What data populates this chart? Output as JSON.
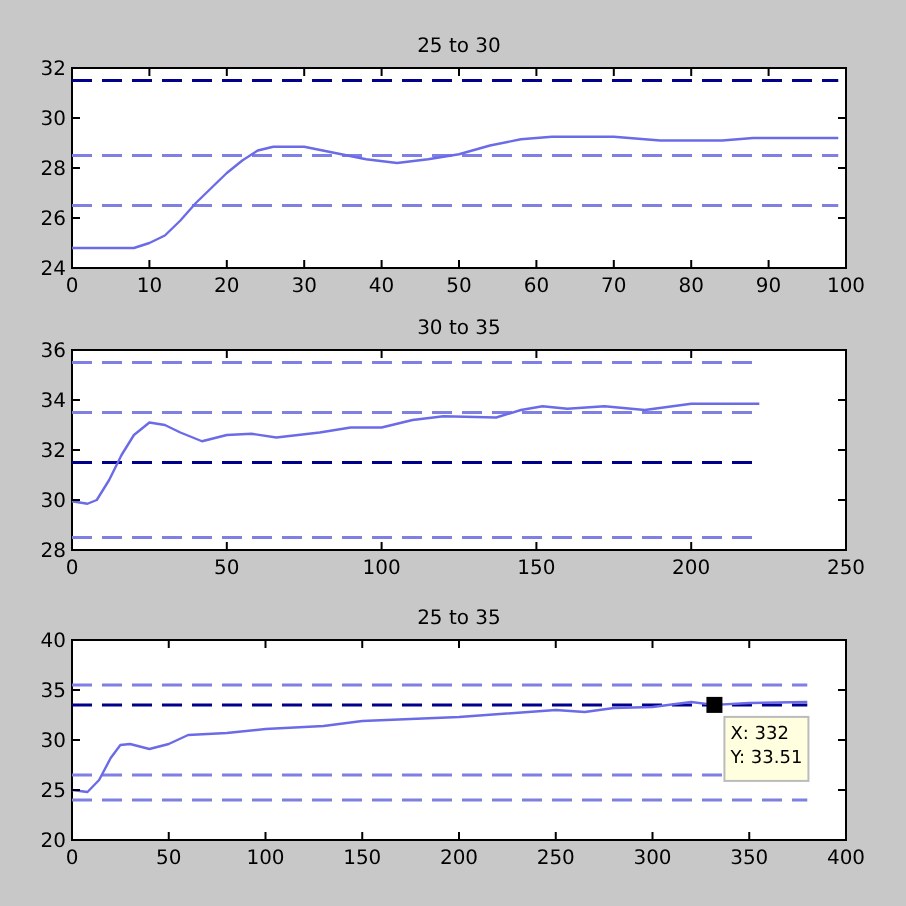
{
  "chart_data": [
    {
      "type": "line",
      "title": "25 to 30",
      "xlim": [
        0,
        100
      ],
      "xticks": [
        0,
        10,
        20,
        30,
        40,
        50,
        60,
        70,
        80,
        90,
        100
      ],
      "ylim": [
        24,
        32
      ],
      "yticks": [
        24,
        26,
        28,
        30,
        32
      ],
      "grid": false,
      "x": [
        0,
        8,
        10,
        12,
        14,
        16,
        18,
        20,
        22,
        24,
        26,
        30,
        34,
        38,
        42,
        46,
        50,
        54,
        58,
        62,
        70,
        76,
        84,
        88,
        99
      ],
      "series": [
        {
          "color": "#6b6be8",
          "values": [
            24.8,
            24.8,
            25,
            25.3,
            25.9,
            26.6,
            27.2,
            27.8,
            28.3,
            28.7,
            28.85,
            28.85,
            28.6,
            28.35,
            28.2,
            28.35,
            28.55,
            28.9,
            29.15,
            29.25,
            29.25,
            29.1,
            29.1,
            29.2,
            29.2
          ]
        }
      ],
      "ref_lines": [
        {
          "axis": "y",
          "value": 31.5,
          "color": "#00008b",
          "line_style": "dashed"
        },
        {
          "axis": "y",
          "value": 28.5,
          "color": "#7f7fe6",
          "line_style": "dashed"
        },
        {
          "axis": "y",
          "value": 26.5,
          "color": "#8080e0",
          "line_style": "dashed"
        }
      ]
    },
    {
      "type": "line",
      "title": "30 to 35",
      "xlim": [
        0,
        250
      ],
      "xticks": [
        0,
        50,
        100,
        150,
        200,
        250
      ],
      "ylim": [
        28,
        36
      ],
      "yticks": [
        28,
        30,
        32,
        34,
        36
      ],
      "grid": false,
      "x": [
        0,
        5,
        8,
        12,
        16,
        20,
        25,
        30,
        35,
        42,
        50,
        58,
        66,
        80,
        90,
        100,
        110,
        120,
        137,
        145,
        152,
        160,
        172,
        185,
        200,
        222
      ],
      "series": [
        {
          "color": "#6b6be8",
          "values": [
            29.95,
            29.85,
            30,
            30.8,
            31.8,
            32.6,
            33.1,
            33,
            32.7,
            32.35,
            32.6,
            32.65,
            32.5,
            32.7,
            32.9,
            32.9,
            33.2,
            33.35,
            33.3,
            33.6,
            33.75,
            33.65,
            33.75,
            33.6,
            33.85,
            33.85
          ]
        }
      ],
      "ref_lines": [
        {
          "axis": "y",
          "value": 35.5,
          "color": "#7f7fe6",
          "line_style": "dashed"
        },
        {
          "axis": "y",
          "value": 33.5,
          "color": "#8080e0",
          "line_style": "dashed"
        },
        {
          "axis": "y",
          "value": 31.5,
          "color": "#00008b",
          "line_style": "dashed"
        },
        {
          "axis": "y",
          "value": 28.5,
          "color": "#7f7fe6",
          "line_style": "dashed"
        }
      ]
    },
    {
      "type": "line",
      "title": "25 to 35",
      "xlim": [
        0,
        400
      ],
      "xticks": [
        0,
        50,
        100,
        150,
        200,
        250,
        300,
        350,
        400
      ],
      "ylim": [
        20,
        40
      ],
      "yticks": [
        20,
        25,
        30,
        35,
        40
      ],
      "grid": false,
      "x": [
        0,
        8,
        14,
        20,
        25,
        30,
        40,
        50,
        60,
        80,
        100,
        130,
        150,
        200,
        250,
        265,
        280,
        300,
        320,
        332,
        350,
        380
      ],
      "series": [
        {
          "color": "#6b6be8",
          "values": [
            25,
            24.8,
            26,
            28.2,
            29.5,
            29.6,
            29.1,
            29.6,
            30.5,
            30.7,
            31.1,
            31.4,
            31.9,
            32.3,
            33,
            32.8,
            33.2,
            33.3,
            33.8,
            33.51,
            33.7,
            33.8
          ]
        }
      ],
      "ref_lines": [
        {
          "axis": "y",
          "value": 35.5,
          "color": "#7f7fe6",
          "line_style": "dashed"
        },
        {
          "axis": "y",
          "value": 33.5,
          "color": "#00008b",
          "line_style": "dashed"
        },
        {
          "axis": "y",
          "value": 26.5,
          "color": "#7f7fe6",
          "line_style": "dashed"
        },
        {
          "axis": "y",
          "value": 24,
          "color": "#8080e0",
          "line_style": "dashed"
        }
      ],
      "annotations": [
        {
          "text": "X: 332\nY: 33.51",
          "x": 332,
          "y": 33.51
        }
      ]
    }
  ]
}
